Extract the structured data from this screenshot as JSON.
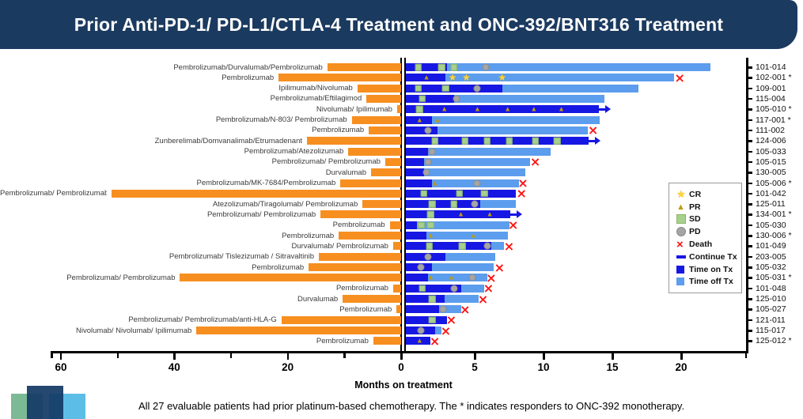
{
  "title": "Prior Anti-PD-1/ PD-L1/CTLA-4 Treatment and ONC-392/BNT316 Treatment",
  "footnote": "All 27 evaluable patients had prior platinum-based chemotherapy.  The * indicates responders to ONC-392 monotherapy.",
  "colors": {
    "banner": "#1b3a5f",
    "prior": "#F78F20",
    "time_on": "#1717E3",
    "time_off": "#5C9DEE",
    "cr": "#FFD43B",
    "pr": "#BE9B0F",
    "sd": "#A8D08D",
    "pd": "#A5A5A5",
    "death": "#FF1212"
  },
  "chart_data": {
    "type": "bar",
    "subtype": "bidirectional-swimmer",
    "xlabel": "Months on treatment",
    "left_axis": {
      "unit": "months prior treatment",
      "major_ticks": [
        60,
        40,
        20,
        0
      ],
      "minor_ticks": [
        50,
        30,
        10
      ],
      "max": 61.5,
      "direction": "right-to-left"
    },
    "right_axis": {
      "unit": "months on ONC-392/BNT316",
      "major_ticks": [
        5,
        10,
        15,
        20
      ],
      "minor_ticks": [
        24.7
      ],
      "max": 24.8
    },
    "legend": [
      {
        "label": "CR",
        "icon": "star"
      },
      {
        "label": "PR",
        "icon": "triangle"
      },
      {
        "label": "SD",
        "icon": "square-sd"
      },
      {
        "label": "PD",
        "icon": "circle"
      },
      {
        "label": "Death",
        "icon": "x"
      },
      {
        "label": "Continue Tx",
        "icon": "dash"
      },
      {
        "label": "Time on Tx",
        "icon": "square-on"
      },
      {
        "label": "Time off Tx",
        "icon": "square-off"
      }
    ],
    "patients": [
      {
        "id": "101-014",
        "responder": false,
        "prior": "Pembrolizumab/Durvalumab/Pembrolizumab",
        "prior_months": 13.0,
        "on_tx": 3.0,
        "total": 22.1,
        "markers": [
          {
            "t": "SD",
            "m": 0.9
          },
          {
            "t": "SD",
            "m": 2.6
          },
          {
            "t": "SD",
            "m": 3.5
          },
          {
            "t": "PD",
            "m": 5.8
          }
        ],
        "death": null,
        "continue_tx": false
      },
      {
        "id": "102-001",
        "responder": true,
        "prior": "Pembrolizumab",
        "prior_months": 21.6,
        "on_tx": 2.9,
        "total": 19.5,
        "markers": [
          {
            "t": "PR",
            "m": 1.5
          },
          {
            "t": "CR",
            "m": 3.4
          },
          {
            "t": "CR",
            "m": 4.4
          },
          {
            "t": "CR",
            "m": 7.0
          }
        ],
        "death": 19.9,
        "continue_tx": false
      },
      {
        "id": "109-001",
        "responder": false,
        "prior": "Ipilimumab/Nivolumab",
        "prior_months": 7.7,
        "on_tx": 7.0,
        "total": 16.9,
        "markers": [
          {
            "t": "SD",
            "m": 0.9
          },
          {
            "t": "SD",
            "m": 2.9
          },
          {
            "t": "PD",
            "m": 5.2
          }
        ],
        "death": null,
        "continue_tx": false
      },
      {
        "id": "115-004",
        "responder": false,
        "prior": "Pembrolizumab/Eftilagimod",
        "prior_months": 6.1,
        "on_tx": 3.5,
        "total": 14.4,
        "markers": [
          {
            "t": "SD",
            "m": 1.2
          },
          {
            "t": "PD",
            "m": 3.7
          }
        ],
        "death": null,
        "continue_tx": false
      },
      {
        "id": "105-010",
        "responder": true,
        "prior": "Nivolumab/ Ipilimumab",
        "prior_months": 0.7,
        "on_tx": 14.0,
        "total": 14.0,
        "markers": [
          {
            "t": "SD",
            "m": 1.0
          },
          {
            "t": "PR",
            "m": 2.8
          },
          {
            "t": "PR",
            "m": 5.2
          },
          {
            "t": "PR",
            "m": 7.4
          },
          {
            "t": "PR",
            "m": 9.3
          },
          {
            "t": "PR",
            "m": 11.3
          }
        ],
        "death": null,
        "continue_tx": true
      },
      {
        "id": "117-001",
        "responder": true,
        "prior": "Pembrolizumab/N-803/ Pembrolizumab",
        "prior_months": 8.7,
        "on_tx": 1.9,
        "total": 14.1,
        "markers": [
          {
            "t": "PR",
            "m": 1.0
          },
          {
            "t": "PR",
            "m": 2.3
          }
        ],
        "death": null,
        "continue_tx": false
      },
      {
        "id": "111-002",
        "responder": false,
        "prior": "Pembrolizumab",
        "prior_months": 5.7,
        "on_tx": 2.3,
        "total": 13.2,
        "markers": [
          {
            "t": "PD",
            "m": 1.6
          }
        ],
        "death": 13.6,
        "continue_tx": false
      },
      {
        "id": "124-006",
        "responder": false,
        "prior": "Zunberelimab/Domvanalimab/Etrumadenant",
        "prior_months": 16.6,
        "on_tx": 13.3,
        "total": 13.3,
        "markers": [
          {
            "t": "SD",
            "m": 2.1
          },
          {
            "t": "SD",
            "m": 4.3
          },
          {
            "t": "SD",
            "m": 5.9
          },
          {
            "t": "SD",
            "m": 7.5
          },
          {
            "t": "SD",
            "m": 9.4
          },
          {
            "t": "SD",
            "m": 11.0
          }
        ],
        "death": null,
        "continue_tx": true
      },
      {
        "id": "105-033",
        "responder": false,
        "prior": "Pembrolizumab/Atezolizumab",
        "prior_months": 9.3,
        "on_tx": 1.6,
        "total": 10.5,
        "markers": [
          {
            "t": "PD",
            "m": 1.9
          }
        ],
        "death": null,
        "continue_tx": false
      },
      {
        "id": "105-015",
        "responder": false,
        "prior": "Pembrolizumab/ Pembrolizumab",
        "prior_months": 2.8,
        "on_tx": 1.3,
        "total": 9.0,
        "markers": [
          {
            "t": "PD",
            "m": 1.6
          }
        ],
        "death": 9.4,
        "continue_tx": false
      },
      {
        "id": "130-005",
        "responder": false,
        "prior": "Durvalumab",
        "prior_months": 5.3,
        "on_tx": 1.3,
        "total": 8.7,
        "markers": [
          {
            "t": "PD",
            "m": 1.5
          }
        ],
        "death": null,
        "continue_tx": false
      },
      {
        "id": "105-006",
        "responder": true,
        "prior": "Pembrolizumab/MK-7684/Pembrolizumab",
        "prior_months": 10.7,
        "on_tx": 1.9,
        "total": 8.2,
        "markers": [
          {
            "t": "PR",
            "m": 2.1
          },
          {
            "t": "PD",
            "m": 5.2
          }
        ],
        "death": 8.5,
        "continue_tx": false
      },
      {
        "id": "101-042",
        "responder": false,
        "prior": "Pembrolizumab/ Pembrolizumab",
        "prior_months": 51.0,
        "on_tx": 8.0,
        "total": 8.0,
        "markers": [
          {
            "t": "SD",
            "m": 1.3
          },
          {
            "t": "SD",
            "m": 3.9
          },
          {
            "t": "SD",
            "m": 5.7
          }
        ],
        "death": 8.4,
        "continue_tx": false
      },
      {
        "id": "125-011",
        "responder": false,
        "prior": "Atezolizumab/Tiragolumab/ Pembrolizumab",
        "prior_months": 6.8,
        "on_tx": 5.4,
        "total": 8.0,
        "markers": [
          {
            "t": "SD",
            "m": 1.9
          },
          {
            "t": "SD",
            "m": 3.5
          },
          {
            "t": "PD",
            "m": 5.0
          }
        ],
        "death": null,
        "continue_tx": false
      },
      {
        "id": "134-001",
        "responder": true,
        "prior": "Pembrolizumab/ Pembrolizumab",
        "prior_months": 14.2,
        "on_tx": 7.6,
        "total": 7.6,
        "markers": [
          {
            "t": "SD",
            "m": 1.8
          },
          {
            "t": "PR",
            "m": 4.0
          },
          {
            "t": "PR",
            "m": 6.1
          }
        ],
        "death": null,
        "continue_tx": true
      },
      {
        "id": "105-030",
        "responder": false,
        "prior": "Pembrolizumab",
        "prior_months": 2.0,
        "on_tx": 0.8,
        "total": 7.5,
        "markers": [
          {
            "t": "SD",
            "m": 1.1
          },
          {
            "t": "SD",
            "m": 1.8
          }
        ],
        "death": 7.8,
        "continue_tx": false
      },
      {
        "id": "130-006",
        "responder": true,
        "prior": "Pembrolizumab",
        "prior_months": 11.0,
        "on_tx": 1.5,
        "total": 7.4,
        "markers": [
          {
            "t": "PR",
            "m": 1.8
          },
          {
            "t": "PR",
            "m": 4.9
          }
        ],
        "death": null,
        "continue_tx": false
      },
      {
        "id": "101-049",
        "responder": false,
        "prior": "Durvalumab/ Pembrolizumab",
        "prior_months": 1.4,
        "on_tx": 6.2,
        "total": 7.1,
        "markers": [
          {
            "t": "SD",
            "m": 1.7
          },
          {
            "t": "SD",
            "m": 4.1
          },
          {
            "t": "PD",
            "m": 5.9
          }
        ],
        "death": 7.5,
        "continue_tx": false
      },
      {
        "id": "203-005",
        "responder": false,
        "prior": "Pembrolizumab/ Tislezizumab / Sitravaltinib",
        "prior_months": 14.5,
        "on_tx": 2.9,
        "total": 6.5,
        "markers": [
          {
            "t": "PD",
            "m": 1.6
          }
        ],
        "death": null,
        "continue_tx": false
      },
      {
        "id": "105-032",
        "responder": false,
        "prior": "Pembrolizumab",
        "prior_months": 16.3,
        "on_tx": 1.9,
        "total": 6.4,
        "markers": [
          {
            "t": "PD",
            "m": 1.1
          }
        ],
        "death": 6.8,
        "continue_tx": false
      },
      {
        "id": "105-031",
        "responder": true,
        "prior": "Pembrolizumab/ Pembrolizumab",
        "prior_months": 39.0,
        "on_tx": 1.6,
        "total": 5.9,
        "markers": [
          {
            "t": "PR",
            "m": 1.8
          },
          {
            "t": "PR",
            "m": 3.3
          },
          {
            "t": "PD",
            "m": 4.8
          }
        ],
        "death": 6.2,
        "continue_tx": false
      },
      {
        "id": "101-048",
        "responder": false,
        "prior": "Pembrolizumab",
        "prior_months": 1.4,
        "on_tx": 4.0,
        "total": 5.7,
        "markers": [
          {
            "t": "SD",
            "m": 1.2
          },
          {
            "t": "PD",
            "m": 3.5
          }
        ],
        "death": 6.0,
        "continue_tx": false
      },
      {
        "id": "125-010",
        "responder": false,
        "prior": "Durvalumab",
        "prior_months": 10.3,
        "on_tx": 2.8,
        "total": 5.3,
        "markers": [
          {
            "t": "SD",
            "m": 1.9
          }
        ],
        "death": 5.6,
        "continue_tx": false
      },
      {
        "id": "105-027",
        "responder": false,
        "prior": "Pembrolizumab",
        "prior_months": 0.8,
        "on_tx": 2.4,
        "total": 4.0,
        "markers": [
          {
            "t": "PD",
            "m": 2.7
          }
        ],
        "death": 4.3,
        "continue_tx": false
      },
      {
        "id": "121-011",
        "responder": false,
        "prior": "Pembrolizumab/ Pembrolizumab/anti-HLA-G",
        "prior_months": 21.1,
        "on_tx": 3.0,
        "total": 3.0,
        "markers": [
          {
            "t": "SD",
            "m": 1.9
          }
        ],
        "death": 3.3,
        "continue_tx": false
      },
      {
        "id": "115-017",
        "responder": false,
        "prior": "Nivolumab/ Nivolumab/ Ipilimumab",
        "prior_months": 36.1,
        "on_tx": 2.1,
        "total": 2.6,
        "markers": [
          {
            "t": "PD",
            "m": 1.1
          }
        ],
        "death": 2.9,
        "continue_tx": false
      },
      {
        "id": "125-012",
        "responder": true,
        "prior": "Pembrolizumab",
        "prior_months": 4.9,
        "on_tx": 1.8,
        "total": 1.8,
        "markers": [
          {
            "t": "PR",
            "m": 1.0
          }
        ],
        "death": 2.1,
        "continue_tx": false
      }
    ]
  }
}
